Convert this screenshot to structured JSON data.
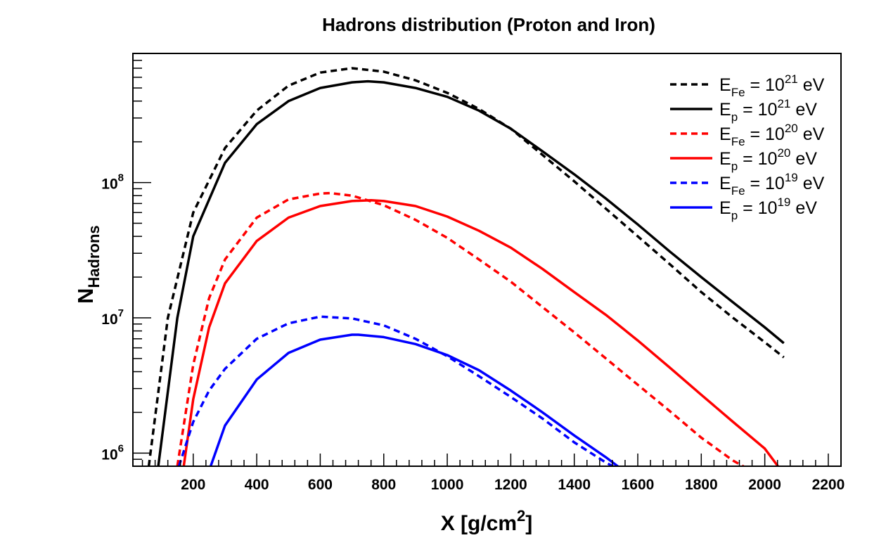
{
  "chart_data": {
    "type": "line",
    "title": "Hadrons distribution (Proton and Iron)",
    "xlabel": "X [g/cm^2]",
    "xlabel_parts": {
      "base": "X [g/cm",
      "sup": "2",
      "end": "]"
    },
    "ylabel": "N_Hadrons",
    "ylabel_parts": {
      "base": "N",
      "sub": "Hadrons"
    },
    "xlim": [
      10,
      2240
    ],
    "ylim": [
      800000,
      900000000
    ],
    "yscale": "log",
    "x_ticks": [
      200,
      400,
      600,
      800,
      1000,
      1200,
      1400,
      1600,
      1800,
      2000,
      2200
    ],
    "x_tick_labels": [
      "200",
      "400",
      "600",
      "800",
      "1000",
      "1200",
      "1400",
      "1600",
      "1800",
      "2000",
      "2200"
    ],
    "y_ticks": [
      1000000,
      10000000,
      100000000
    ],
    "y_tick_labels": [
      {
        "base": "10",
        "exp": "6"
      },
      {
        "base": "10",
        "exp": "7"
      },
      {
        "base": "10",
        "exp": "8"
      }
    ],
    "grid": false,
    "legend_position": "top-right",
    "series": [
      {
        "legend": {
          "E": "E",
          "sub": "Fe",
          "rest": " = 10",
          "exp": "21",
          "unit": " eV"
        },
        "color": "#000000",
        "dash": true,
        "x": [
          60,
          120,
          200,
          300,
          400,
          500,
          600,
          700,
          800,
          900,
          1000,
          1100,
          1200,
          1300,
          1400,
          1500,
          1600,
          1700,
          1800,
          1900,
          2000,
          2060
        ],
        "y": [
          800000,
          10000000,
          60000000,
          180000000,
          340000000,
          520000000,
          650000000,
          700000000,
          660000000,
          570000000,
          460000000,
          350000000,
          250000000,
          160000000,
          102000000,
          64000000,
          40000000,
          25000000,
          15500000,
          10000000,
          6600000,
          5100000
        ]
      },
      {
        "legend": {
          "E": "E",
          "sub": "p",
          "rest": " = 10",
          "exp": "21",
          "unit": " eV"
        },
        "color": "#000000",
        "dash": false,
        "x": [
          90,
          150,
          200,
          300,
          400,
          500,
          600,
          700,
          750,
          800,
          900,
          1000,
          1100,
          1200,
          1300,
          1400,
          1500,
          1600,
          1700,
          1800,
          1900,
          2000,
          2060
        ],
        "y": [
          800000,
          10000000,
          40000000,
          140000000,
          270000000,
          400000000,
          500000000,
          550000000,
          560000000,
          550000000,
          500000000,
          430000000,
          340000000,
          250000000,
          170000000,
          115000000,
          76000000,
          49000000,
          31000000,
          20000000,
          13000000,
          8500000,
          6500000
        ]
      },
      {
        "legend": {
          "E": "E",
          "sub": "Fe",
          "rest": " = 10",
          "exp": "20",
          "unit": " eV"
        },
        "color": "#ff0000",
        "dash": true,
        "x": [
          150,
          200,
          250,
          300,
          400,
          500,
          600,
          630,
          700,
          800,
          900,
          1000,
          1100,
          1200,
          1300,
          1400,
          1500,
          1600,
          1700,
          1800,
          1900,
          1940
        ],
        "y": [
          800000,
          4500000,
          14000000,
          27000000,
          55000000,
          75000000,
          83000000,
          83500000,
          80000000,
          68000000,
          53000000,
          39000000,
          27000000,
          18500000,
          12000000,
          7800000,
          5000000,
          3200000,
          2050000,
          1300000,
          880000,
          780000
        ]
      },
      {
        "legend": {
          "E": "E",
          "sub": "p",
          "rest": " = 10",
          "exp": "20",
          "unit": " eV"
        },
        "color": "#ff0000",
        "dash": false,
        "x": [
          170,
          200,
          250,
          300,
          400,
          500,
          600,
          700,
          760,
          800,
          900,
          1000,
          1100,
          1200,
          1300,
          1400,
          1500,
          1600,
          1700,
          1800,
          1900,
          2000,
          2045
        ],
        "y": [
          800000,
          2500000,
          8500000,
          18000000,
          37000000,
          55000000,
          67000000,
          73000000,
          74000000,
          73000000,
          67000000,
          56000000,
          44000000,
          33000000,
          23000000,
          15500000,
          10500000,
          6800000,
          4300000,
          2700000,
          1700000,
          1080000,
          780000
        ]
      },
      {
        "legend": {
          "E": "E",
          "sub": "Fe",
          "rest": " = 10",
          "exp": "19",
          "unit": " eV"
        },
        "color": "#0000ff",
        "dash": true,
        "x": [
          155,
          200,
          250,
          300,
          400,
          500,
          600,
          700,
          800,
          900,
          1000,
          1100,
          1200,
          1300,
          1400,
          1500,
          1530
        ],
        "y": [
          800000,
          1700000,
          2900000,
          4200000,
          7000000,
          9100000,
          10200000,
          9900000,
          8800000,
          7000000,
          5200000,
          3700000,
          2600000,
          1800000,
          1200000,
          850000,
          780000
        ]
      },
      {
        "legend": {
          "E": "E",
          "sub": "p",
          "rest": " = 10",
          "exp": "19",
          "unit": " eV"
        },
        "color": "#0000ff",
        "dash": false,
        "x": [
          255,
          300,
          400,
          500,
          600,
          700,
          720,
          800,
          900,
          1000,
          1100,
          1200,
          1300,
          1400,
          1500,
          1540
        ],
        "y": [
          800000,
          1600000,
          3500000,
          5500000,
          6900000,
          7500000,
          7500000,
          7200000,
          6400000,
          5300000,
          4100000,
          2900000,
          2000000,
          1350000,
          930000,
          790000
        ]
      }
    ]
  }
}
